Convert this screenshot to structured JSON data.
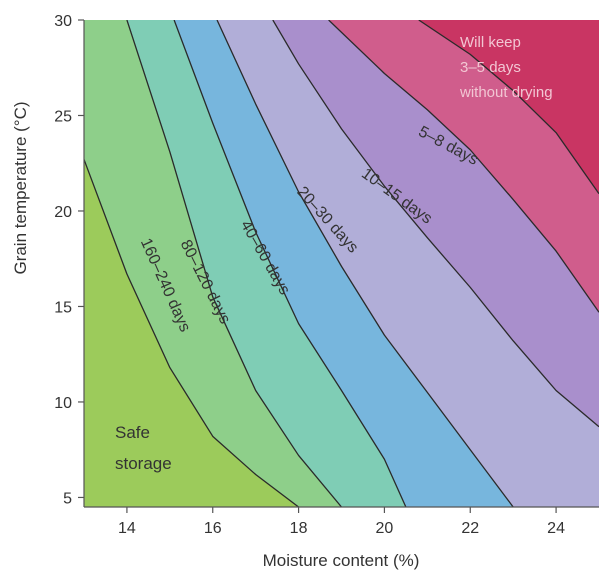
{
  "chart_data": {
    "type": "area",
    "xlabel": "Moisture content (%)",
    "ylabel": "Grain temperature (°C)",
    "xlim": [
      13,
      25
    ],
    "ylim": [
      4.5,
      30
    ],
    "x_ticks": [
      14,
      16,
      18,
      20,
      22,
      24
    ],
    "y_ticks": [
      5,
      10,
      15,
      20,
      25,
      30
    ],
    "grid": false,
    "zones": [
      {
        "label": "Safe storage",
        "color": "#9ccb5b"
      },
      {
        "label": "160–240 days",
        "color": "#8ecf8a"
      },
      {
        "label": "80–120 days",
        "color": "#7fcdb5"
      },
      {
        "label": "40–60 days",
        "color": "#77b6dd"
      },
      {
        "label": "20–30 days",
        "color": "#b1aed8"
      },
      {
        "label": "10–15 days",
        "color": "#a98fcc"
      },
      {
        "label": "5–8 days",
        "color": "#d05d8c"
      },
      {
        "label": "Will keep 3–5 days without drying",
        "color": "#c93563"
      }
    ],
    "series": [
      {
        "x": [
          13.0,
          14.0,
          15.0,
          16.0,
          17.0,
          18.0
        ],
        "y": [
          22.7,
          16.7,
          11.8,
          8.2,
          6.2,
          4.5
        ]
      },
      {
        "x": [
          14.0,
          15.0,
          16.0,
          17.0,
          18.0,
          19.0
        ],
        "y": [
          30.0,
          23.1,
          15.5,
          10.6,
          7.2,
          4.5
        ]
      },
      {
        "x": [
          15.1,
          16.0,
          17.0,
          18.0,
          19.0,
          20.0,
          20.5
        ],
        "y": [
          30.0,
          24.6,
          18.9,
          14.1,
          10.6,
          7.0,
          4.5
        ]
      },
      {
        "x": [
          16.1,
          17.0,
          18.0,
          19.0,
          20.0,
          21.0,
          22.0,
          23.0
        ],
        "y": [
          30.0,
          25.6,
          21.0,
          17.1,
          13.5,
          10.5,
          7.5,
          4.5
        ]
      },
      {
        "x": [
          17.4,
          18.0,
          19.0,
          20.0,
          21.0,
          22.0,
          23.0,
          24.0,
          25.0
        ],
        "y": [
          30.0,
          27.7,
          24.3,
          21.3,
          18.6,
          16.0,
          13.2,
          10.6,
          8.7
        ]
      },
      {
        "x": [
          18.7,
          20.0,
          21.0,
          22.0,
          23.0,
          24.0,
          25.0
        ],
        "y": [
          30.0,
          27.2,
          25.3,
          23.2,
          20.6,
          17.9,
          14.7
        ]
      },
      {
        "x": [
          20.8,
          22.0,
          23.0,
          24.0,
          25.0
        ],
        "y": [
          30.0,
          28.2,
          26.3,
          24.1,
          20.9
        ]
      }
    ]
  },
  "labels": {
    "zone_0": "160–240 days",
    "zone_1": "80–120 days",
    "zone_2": "40–60 days",
    "zone_3": "20–30 days",
    "zone_4": "10–15 days",
    "zone_5": "5–8 days",
    "safe_line1": "Safe",
    "safe_line2": "storage",
    "keep_line1": "Will keep",
    "keep_line2": "3–5 days",
    "keep_line3": "without drying"
  }
}
